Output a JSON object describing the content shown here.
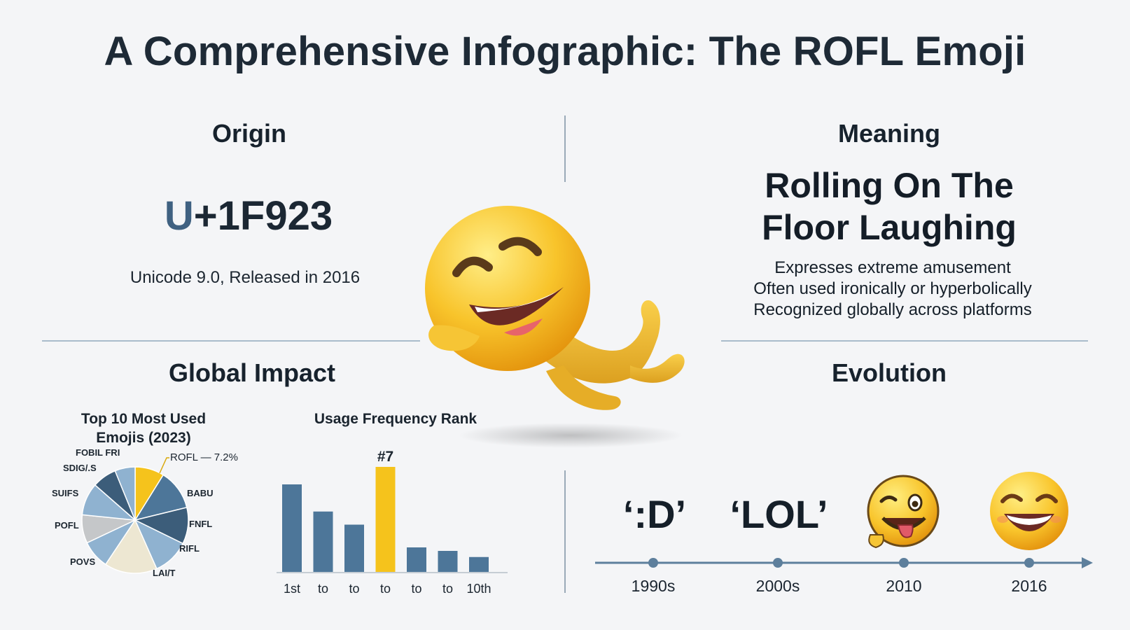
{
  "title": "A Comprehensive Infographic: The ROFL Emoji",
  "origin": {
    "heading": "Origin",
    "code_prefix": "U",
    "code_rest": "+1F923",
    "subtitle": "Unicode 9.0, Released in 2016"
  },
  "meaning": {
    "heading": "Meaning",
    "line1": "Rolling On The",
    "line2": "Floor Laughing",
    "bullets": [
      "Expresses extreme amusement",
      "Often used ironically or hyperbolically",
      "Recognized globally across platforms"
    ]
  },
  "impact": {
    "heading": "Global Impact",
    "pie_title_line1": "Top 10 Most Used",
    "pie_title_line2": "Emojis (2023)",
    "bar_title": "Usage Frequency Rank"
  },
  "evolution": {
    "heading": "Evolution",
    "items": [
      {
        "label": "‘:D’",
        "year": "1990s"
      },
      {
        "label": "‘LOL’",
        "year": "2000s"
      },
      {
        "label": "",
        "year": "2010"
      },
      {
        "label": "",
        "year": "2016"
      }
    ]
  },
  "colors": {
    "accent_yellow": "#f5c31c",
    "steel_blue": "#4d7699",
    "light_blue": "#8fb2d0",
    "dark_blue": "#3c5d7a",
    "gray": "#c5c7c9",
    "cream": "#ede7d2"
  },
  "chart_data": [
    {
      "type": "pie",
      "title": "Top 10 Most Used Emojis (2023)",
      "highlight_label": "ROFL — 7.2%",
      "labels": [
        "FOBIL FRI",
        "SDIG/.S",
        "SUIFS",
        "POFL",
        "POVS",
        "LAI/T",
        "RIFL",
        "FNFL",
        "BABU",
        "ROFL — 7.2%"
      ],
      "values": [
        5,
        6,
        8,
        7,
        7,
        13,
        9,
        9,
        10,
        7.2
      ],
      "slice_colors": [
        "#8fb2d0",
        "#3c5d7a",
        "#8fb2d0",
        "#c5c7c9",
        "#8fb2d0",
        "#ede7d2",
        "#8fb2d0",
        "#3c5d7a",
        "#4d7699",
        "#f5c31c"
      ]
    },
    {
      "type": "bar",
      "title": "Usage Frequency Rank",
      "categories": [
        "1st",
        "to",
        "to",
        "to",
        "to",
        "to",
        "10th"
      ],
      "values": [
        100,
        69,
        54,
        120,
        28,
        24,
        17
      ],
      "highlight_index": 3,
      "highlight_label": "#7"
    }
  ]
}
